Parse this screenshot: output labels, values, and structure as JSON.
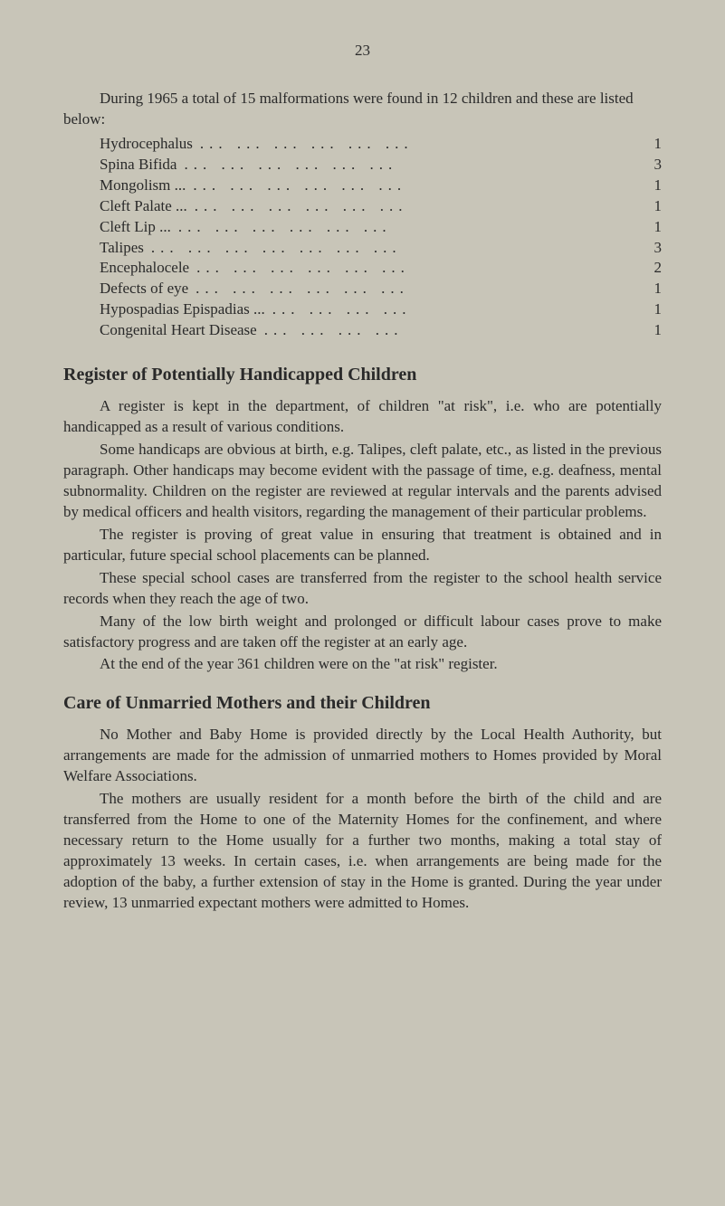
{
  "page_number": "23",
  "intro": "During 1965 a total of 15 malformations were found in 12 children and these are listed below:",
  "malformations": [
    {
      "label": "Hydrocephalus",
      "value": "1"
    },
    {
      "label": "Spina Bifida",
      "value": "3"
    },
    {
      "label": "Mongolism  ...",
      "value": "1"
    },
    {
      "label": "Cleft Palate ...",
      "value": "1"
    },
    {
      "label": "Cleft Lip  ...",
      "value": "1"
    },
    {
      "label": "Talipes",
      "value": "3"
    },
    {
      "label": "Encephalocele",
      "value": "2"
    },
    {
      "label": "Defects of eye",
      "value": "1"
    },
    {
      "label": "Hypospadias Epispadias   ...",
      "value": "1"
    },
    {
      "label": "Congenital Heart Disease",
      "value": "1"
    }
  ],
  "section1": {
    "heading": "Register of Potentially Handicapped Children",
    "paragraphs": [
      "A register is kept in the department, of children \"at risk\", i.e. who are potentially handicapped as a result of various conditions.",
      "Some handicaps are obvious at birth, e.g. Talipes, cleft palate, etc., as listed in the previous paragraph. Other handicaps may become evident with the passage of time, e.g. deafness, mental subnormality. Children on the register are reviewed at regular intervals and the parents advised by medical officers and health visitors, regarding the management of their particular problems.",
      "The register is proving of great value in ensuring that treatment is obtained and in particular, future special school placements can be planned.",
      "These special school cases are transferred from the register to the school health service records when they reach the age of two.",
      "Many of the low birth weight and prolonged or difficult labour cases prove to make satisfactory progress and are taken off the register at an early age.",
      "At the end of the year 361 children were on the \"at risk\" register."
    ]
  },
  "section2": {
    "heading": "Care of Unmarried Mothers and their Children",
    "paragraphs": [
      "No Mother and Baby Home is provided directly by the Local Health Authority, but arrangements are made for the admission of unmarried mothers to Homes provided by Moral Welfare Associations.",
      "The mothers are usually resident for a month before the birth of the child and are transferred from the Home to one of the Maternity Homes for the confinement, and where necessary return to the Home usually for a further two months, making a total stay of approximately 13 weeks. In certain cases, i.e. when arrangements are being made for the adoption of the baby, a further extension of stay in the Home is granted. During the year under review, 13 unmarried expectant mothers were admitted to Homes."
    ]
  },
  "colors": {
    "background": "#c8c5b8",
    "text": "#2a2a2a"
  }
}
